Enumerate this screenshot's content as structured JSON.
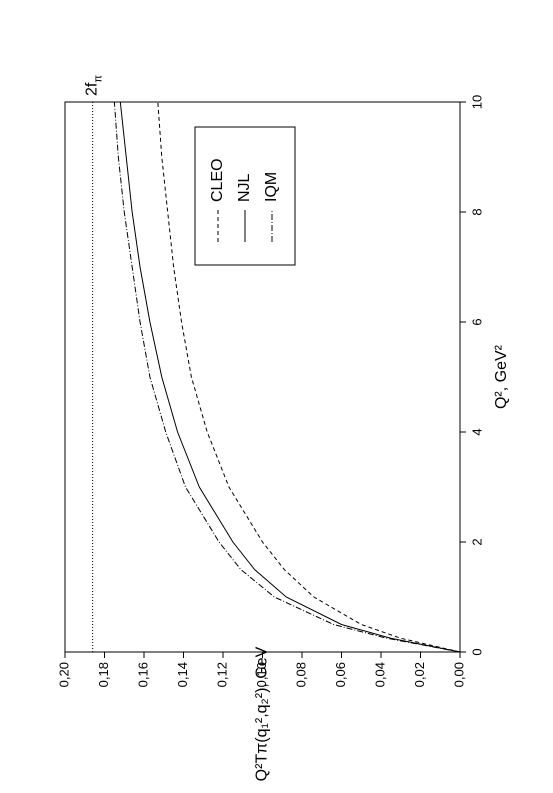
{
  "chart_data": {
    "type": "line",
    "x_label": "Q², GeV²",
    "y_label": "Q²Tπ(q₁²,q₂²), GeV",
    "x": [
      0,
      0.25,
      0.5,
      1,
      1.5,
      2,
      3,
      4,
      5,
      6,
      7,
      8,
      9,
      10
    ],
    "series": [
      {
        "name": "CLEO",
        "color": "#000000",
        "style": "dashed",
        "values": [
          0,
          0.03,
          0.05,
          0.074,
          0.089,
          0.1,
          0.117,
          0.128,
          0.136,
          0.141,
          0.145,
          0.148,
          0.151,
          0.153
        ]
      },
      {
        "name": "NJL",
        "color": "#000000",
        "style": "solid",
        "values": [
          0,
          0.035,
          0.06,
          0.088,
          0.104,
          0.115,
          0.132,
          0.143,
          0.151,
          0.157,
          0.162,
          0.166,
          0.169,
          0.172
        ]
      },
      {
        "name": "IQM",
        "color": "#000000",
        "style": "dashdot",
        "values": [
          0,
          0.037,
          0.064,
          0.094,
          0.111,
          0.122,
          0.139,
          0.149,
          0.157,
          0.162,
          0.166,
          0.17,
          0.173,
          0.175
        ]
      }
    ],
    "reference_line": {
      "value": 0.186,
      "label": "2f",
      "label_sub": "π",
      "style": "dotted"
    },
    "xlim": [
      0,
      10
    ],
    "xticks": [
      0,
      2,
      4,
      6,
      8,
      10
    ],
    "ylim": [
      0,
      0.2
    ],
    "yticks": [
      {
        "value": 0,
        "label": "0,00"
      },
      {
        "value": 0.02,
        "label": "0,02"
      },
      {
        "value": 0.04,
        "label": "0,04"
      },
      {
        "value": 0.06,
        "label": "0,06"
      },
      {
        "value": 0.08,
        "label": "0,08"
      },
      {
        "value": 0.1,
        "label": "0,10"
      },
      {
        "value": 0.12,
        "label": "0,12"
      },
      {
        "value": 0.14,
        "label": "0,14"
      },
      {
        "value": 0.16,
        "label": "0,16"
      },
      {
        "value": 0.18,
        "label": "0,18"
      },
      {
        "value": 0.2,
        "label": "0,20"
      }
    ],
    "rotation": -90,
    "grid": false
  }
}
